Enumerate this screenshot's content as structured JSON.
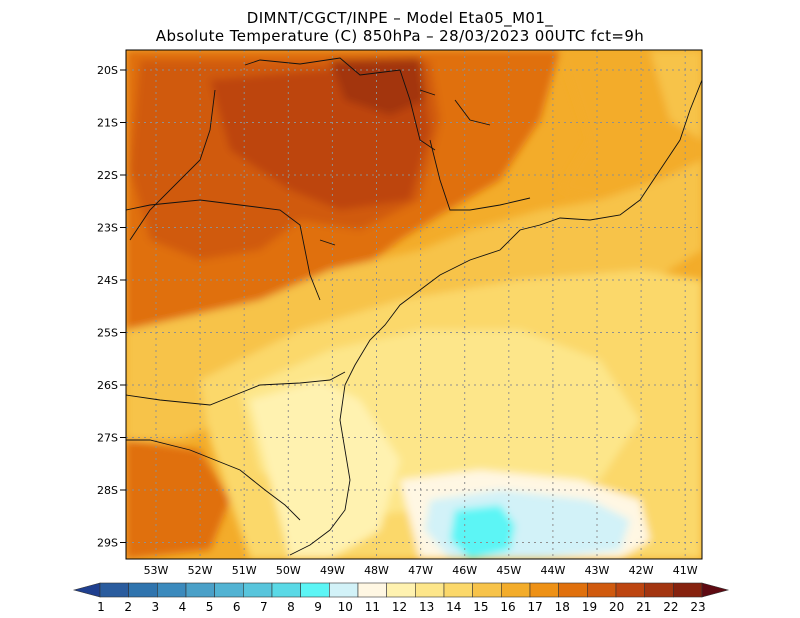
{
  "header": {
    "line1": "DIMNT/CGCT/INPE  –   Model Eta05_M01_",
    "line2": "Absolute Temperature (C) 850hPa  –   28/03/2023 00UTC fct=9h"
  },
  "map": {
    "lat_labels": [
      "20S",
      "21S",
      "22S",
      "23S",
      "24S",
      "25S",
      "26S",
      "27S",
      "28S",
      "29S"
    ],
    "lon_labels": [
      "53W",
      "52W",
      "51W",
      "50W",
      "49W",
      "48W",
      "47W",
      "46W",
      "45W",
      "44W",
      "43W",
      "42W",
      "41W"
    ],
    "field": "850hPa absolute temperature",
    "units": "C"
  },
  "colorbar": {
    "labels": [
      "1",
      "2",
      "3",
      "4",
      "5",
      "6",
      "7",
      "8",
      "9",
      "10",
      "11",
      "12",
      "13",
      "14",
      "15",
      "16",
      "17",
      "18",
      "19",
      "20",
      "21",
      "22",
      "23"
    ],
    "colors": [
      "#1f3f8f",
      "#2a5c9e",
      "#2f74ae",
      "#3b8abd",
      "#4aa0c8",
      "#52b3d3",
      "#58c5dc",
      "#5ad9e6",
      "#5cf5f5",
      "#d2f2f8",
      "#fff7e3",
      "#fff2b0",
      "#fde68a",
      "#fbd86a",
      "#f7c34a",
      "#f3ac2a",
      "#ee9115",
      "#e0700c",
      "#d05a0e",
      "#bd4510",
      "#a33510",
      "#86220e",
      "#5e0a12"
    ]
  }
}
